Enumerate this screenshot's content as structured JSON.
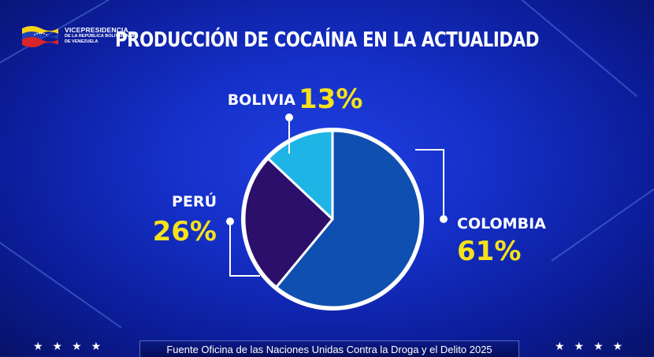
{
  "logo": {
    "line1": "VICEPRESIDENCIA",
    "line2": "DE LA REPÚBLICA BOLIVARIANA",
    "line3": "DE VENEZUELA",
    "flag_colors": [
      "#f7d417",
      "#1e3fb5",
      "#d8262b"
    ]
  },
  "footer": {
    "source": "Fuente Oficina de las Naciones Unidas Contra la Droga y el Delito 2025",
    "stars_left": "★★★★",
    "stars_right": "★★★★"
  },
  "chart_data": {
    "type": "pie",
    "title": "PRODUCCIÓN DE COCAÍNA EN LA ACTUALIDAD",
    "slices": [
      {
        "label": "COLOMBIA",
        "value": 61,
        "display": "61%",
        "color": "#0f4fb0"
      },
      {
        "label": "PERÚ",
        "value": 26,
        "display": "26%",
        "color": "#2c0f6b"
      },
      {
        "label": "BOLIVIA",
        "value": 13,
        "display": "13%",
        "color": "#1eb4e6"
      }
    ],
    "start_angle_deg": 0,
    "direction": "clockwise",
    "slice_border_color": "#ffffff",
    "label_color": "#ffffff",
    "value_color": "#f5e21a"
  }
}
